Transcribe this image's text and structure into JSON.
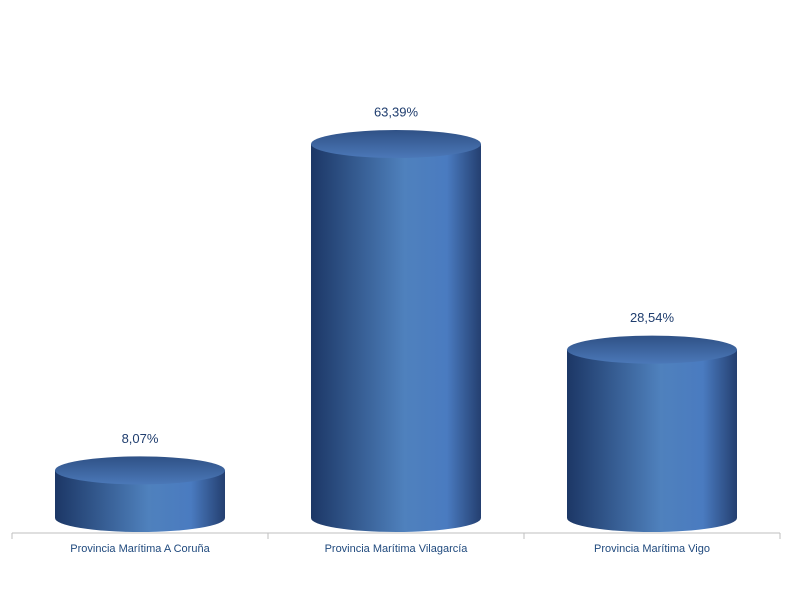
{
  "chart_data": {
    "type": "cylinder",
    "categories": [
      "Provincia Marítima A Coruña",
      "Provincia Marítima Vilagarcía",
      "Provincia Marítima Vigo"
    ],
    "values": [
      8.07,
      63.39,
      28.54
    ],
    "value_labels": [
      "8,07%",
      "63,39%",
      "28,54%"
    ],
    "color": "#4f81bd"
  }
}
